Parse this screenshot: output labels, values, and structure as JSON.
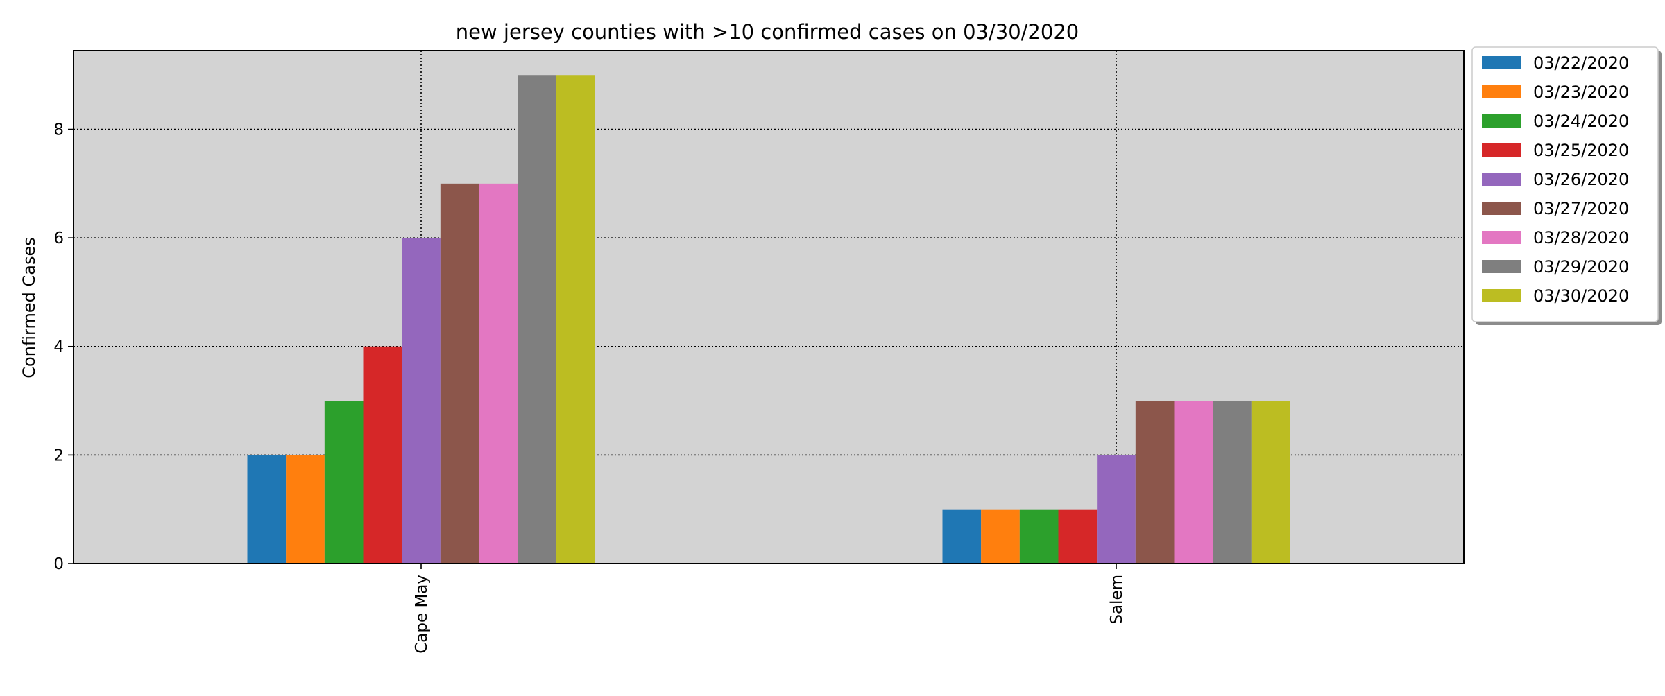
{
  "chart_data": {
    "type": "bar",
    "title": "new jersey counties with >10 confirmed cases on 03/30/2020",
    "xlabel": "",
    "ylabel": "Confirmed Cases",
    "categories": [
      "Cape May",
      "Salem"
    ],
    "ylim": [
      0,
      9.45
    ],
    "yticks": [
      "0",
      "2",
      "4",
      "6",
      "8"
    ],
    "grid": true,
    "legend_position": "outside-top-right",
    "plot_background": "#d3d3d3",
    "series": [
      {
        "name": "03/22/2020",
        "color": "#1f77b4",
        "values": [
          2,
          1
        ]
      },
      {
        "name": "03/23/2020",
        "color": "#ff7f0e",
        "values": [
          2,
          1
        ]
      },
      {
        "name": "03/24/2020",
        "color": "#2ca02c",
        "values": [
          3,
          1
        ]
      },
      {
        "name": "03/25/2020",
        "color": "#d62728",
        "values": [
          4,
          1
        ]
      },
      {
        "name": "03/26/2020",
        "color": "#9467bd",
        "values": [
          6,
          2
        ]
      },
      {
        "name": "03/27/2020",
        "color": "#8c564b",
        "values": [
          7,
          3
        ]
      },
      {
        "name": "03/28/2020",
        "color": "#e377c2",
        "values": [
          7,
          3
        ]
      },
      {
        "name": "03/29/2020",
        "color": "#7f7f7f",
        "values": [
          9,
          3
        ]
      },
      {
        "name": "03/30/2020",
        "color": "#bcbd22",
        "values": [
          9,
          3
        ]
      }
    ]
  }
}
